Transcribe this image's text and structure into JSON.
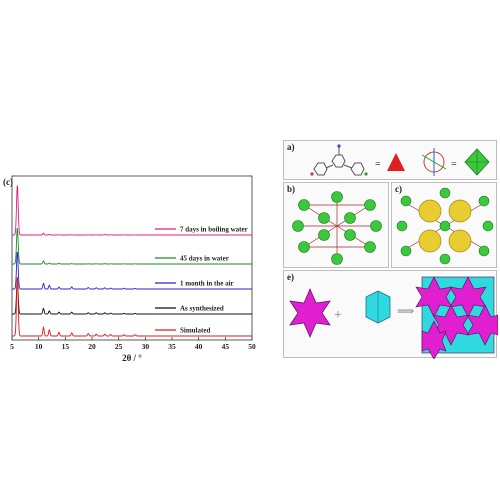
{
  "left_panel_label": "(c)",
  "right_panel_labels": [
    "a)",
    "b)",
    "c)",
    "e)"
  ],
  "colors": {
    "boiling": "#e0207e",
    "water45": "#1f8a2a",
    "air": "#2626c8",
    "as_synth": "#111111",
    "simulated": "#dd1b1b",
    "polyhedron_magenta": "#e020d0",
    "polyhedron_cyan": "#30d8e0",
    "cluster_green": "#3cc83c",
    "sphere_yellow": "#e8cc30"
  },
  "chart_data": {
    "type": "line",
    "title": "",
    "xlabel": "2θ / °",
    "ylabel": "",
    "xlim": [
      5,
      50
    ],
    "xticks": [
      5,
      10,
      15,
      20,
      25,
      30,
      35,
      40,
      45,
      50
    ],
    "peak_positions": [
      6.0,
      10.9,
      12.0,
      13.8,
      16.2,
      19.3,
      20.8,
      22.4,
      23.5,
      26.0,
      28.1
    ],
    "series": [
      {
        "name": "7 days in boiling water",
        "color": "#e0207e",
        "baseline": 0,
        "intensities": [
          80,
          3,
          1,
          0.5,
          0.4,
          0.3,
          0.3,
          1.2,
          0.2,
          0.2,
          0.2
        ]
      },
      {
        "name": "45 days in water",
        "color": "#1f8a2a",
        "baseline": 1,
        "intensities": [
          58,
          5,
          1.5,
          1,
          0.6,
          0.4,
          0.4,
          0.6,
          0.4,
          0.3,
          0.3
        ]
      },
      {
        "name": "1 month in the air",
        "color": "#2626c8",
        "baseline": 2,
        "intensities": [
          60,
          9,
          6,
          3,
          3.5,
          2.5,
          2,
          2,
          1.5,
          1.2,
          1
        ]
      },
      {
        "name": "As synthesized",
        "color": "#111111",
        "baseline": 3,
        "intensities": [
          56,
          9,
          5,
          3,
          3,
          2,
          2,
          2,
          1.5,
          1,
          1
        ]
      },
      {
        "name": "Simulated",
        "color": "#dd1b1b",
        "baseline": 4,
        "intensities": [
          95,
          14,
          10,
          6,
          5,
          4,
          3,
          3,
          2.5,
          2,
          2
        ]
      }
    ]
  }
}
